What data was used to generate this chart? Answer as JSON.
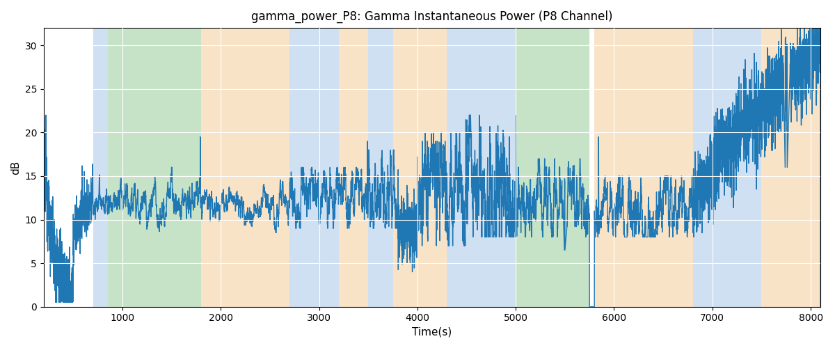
{
  "title": "gamma_power_P8: Gamma Instantaneous Power (P8 Channel)",
  "xlabel": "Time(s)",
  "ylabel": "dB",
  "xlim": [
    200,
    8100
  ],
  "ylim": [
    0,
    32
  ],
  "yticks": [
    0,
    5,
    10,
    15,
    20,
    25,
    30
  ],
  "xticks": [
    1000,
    2000,
    3000,
    4000,
    5000,
    6000,
    7000,
    8000
  ],
  "line_color": "#1f77b4",
  "line_width": 1.0,
  "bands": [
    {
      "xmin": 700,
      "xmax": 850,
      "color": "#a8c8e8",
      "alpha": 0.55
    },
    {
      "xmin": 850,
      "xmax": 1800,
      "color": "#90c890",
      "alpha": 0.5
    },
    {
      "xmin": 1800,
      "xmax": 2700,
      "color": "#f5c890",
      "alpha": 0.5
    },
    {
      "xmin": 2700,
      "xmax": 3200,
      "color": "#a8c8e8",
      "alpha": 0.55
    },
    {
      "xmin": 3200,
      "xmax": 3500,
      "color": "#f5c890",
      "alpha": 0.5
    },
    {
      "xmin": 3500,
      "xmax": 3750,
      "color": "#a8c8e8",
      "alpha": 0.55
    },
    {
      "xmin": 3750,
      "xmax": 4300,
      "color": "#f5c890",
      "alpha": 0.5
    },
    {
      "xmin": 4300,
      "xmax": 5000,
      "color": "#a8c8e8",
      "alpha": 0.55
    },
    {
      "xmin": 5000,
      "xmax": 5750,
      "color": "#90c890",
      "alpha": 0.5
    },
    {
      "xmin": 5800,
      "xmax": 6800,
      "color": "#f5c890",
      "alpha": 0.5
    },
    {
      "xmin": 6800,
      "xmax": 7500,
      "color": "#a8c8e8",
      "alpha": 0.55
    },
    {
      "xmin": 7500,
      "xmax": 8100,
      "color": "#f5c890",
      "alpha": 0.5
    }
  ],
  "seed": 12345
}
